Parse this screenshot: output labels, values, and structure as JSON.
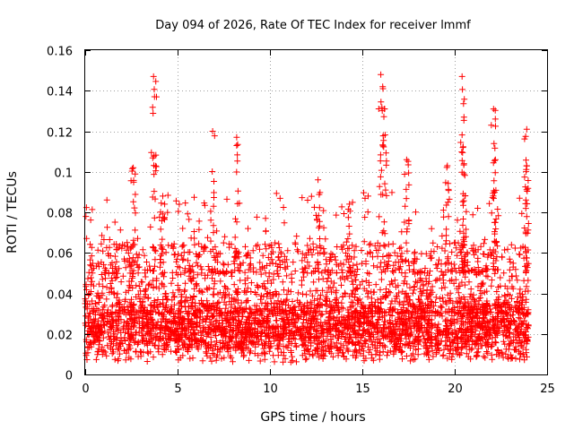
{
  "chart_data": {
    "type": "scatter",
    "title": "Day 094 of 2026, Rate Of TEC Index for receiver lmmf",
    "xlabel": "GPS time / hours",
    "ylabel": "ROTI / TECUs",
    "xlim": [
      0,
      25
    ],
    "ylim": [
      0,
      0.16
    ],
    "xticks": [
      0,
      5,
      10,
      15,
      20,
      25
    ],
    "xtick_labels": [
      "0",
      "5",
      "10",
      "15",
      "20",
      "25"
    ],
    "yticks": [
      0,
      0.02,
      0.04,
      0.06,
      0.08,
      0.1,
      0.12,
      0.14,
      0.16
    ],
    "ytick_labels": [
      "0",
      "0.02",
      "0.04",
      "0.06",
      "0.08",
      "0.1",
      "0.12",
      "0.14",
      "0.16"
    ],
    "grid": true,
    "marker": "+",
    "color": "#ff0000",
    "data_range_x": [
      0,
      24
    ],
    "baseline_level": 0.022,
    "notable_peaks": [
      {
        "x": 3.7,
        "y": 0.147
      },
      {
        "x": 3.75,
        "y": 0.137
      },
      {
        "x": 6.9,
        "y": 0.12
      },
      {
        "x": 8.2,
        "y": 0.117
      },
      {
        "x": 12.6,
        "y": 0.096
      },
      {
        "x": 16.0,
        "y": 0.148
      },
      {
        "x": 16.1,
        "y": 0.142
      },
      {
        "x": 16.2,
        "y": 0.131
      },
      {
        "x": 17.4,
        "y": 0.106
      },
      {
        "x": 19.6,
        "y": 0.103
      },
      {
        "x": 20.4,
        "y": 0.147
      },
      {
        "x": 20.5,
        "y": 0.127
      },
      {
        "x": 20.5,
        "y": 0.104
      },
      {
        "x": 22.1,
        "y": 0.131
      },
      {
        "x": 22.2,
        "y": 0.126
      },
      {
        "x": 23.9,
        "y": 0.121
      },
      {
        "x": 23.9,
        "y": 0.103
      },
      {
        "x": 2.6,
        "y": 0.102
      },
      {
        "x": 4.2,
        "y": 0.088
      },
      {
        "x": 14.3,
        "y": 0.084
      }
    ]
  }
}
